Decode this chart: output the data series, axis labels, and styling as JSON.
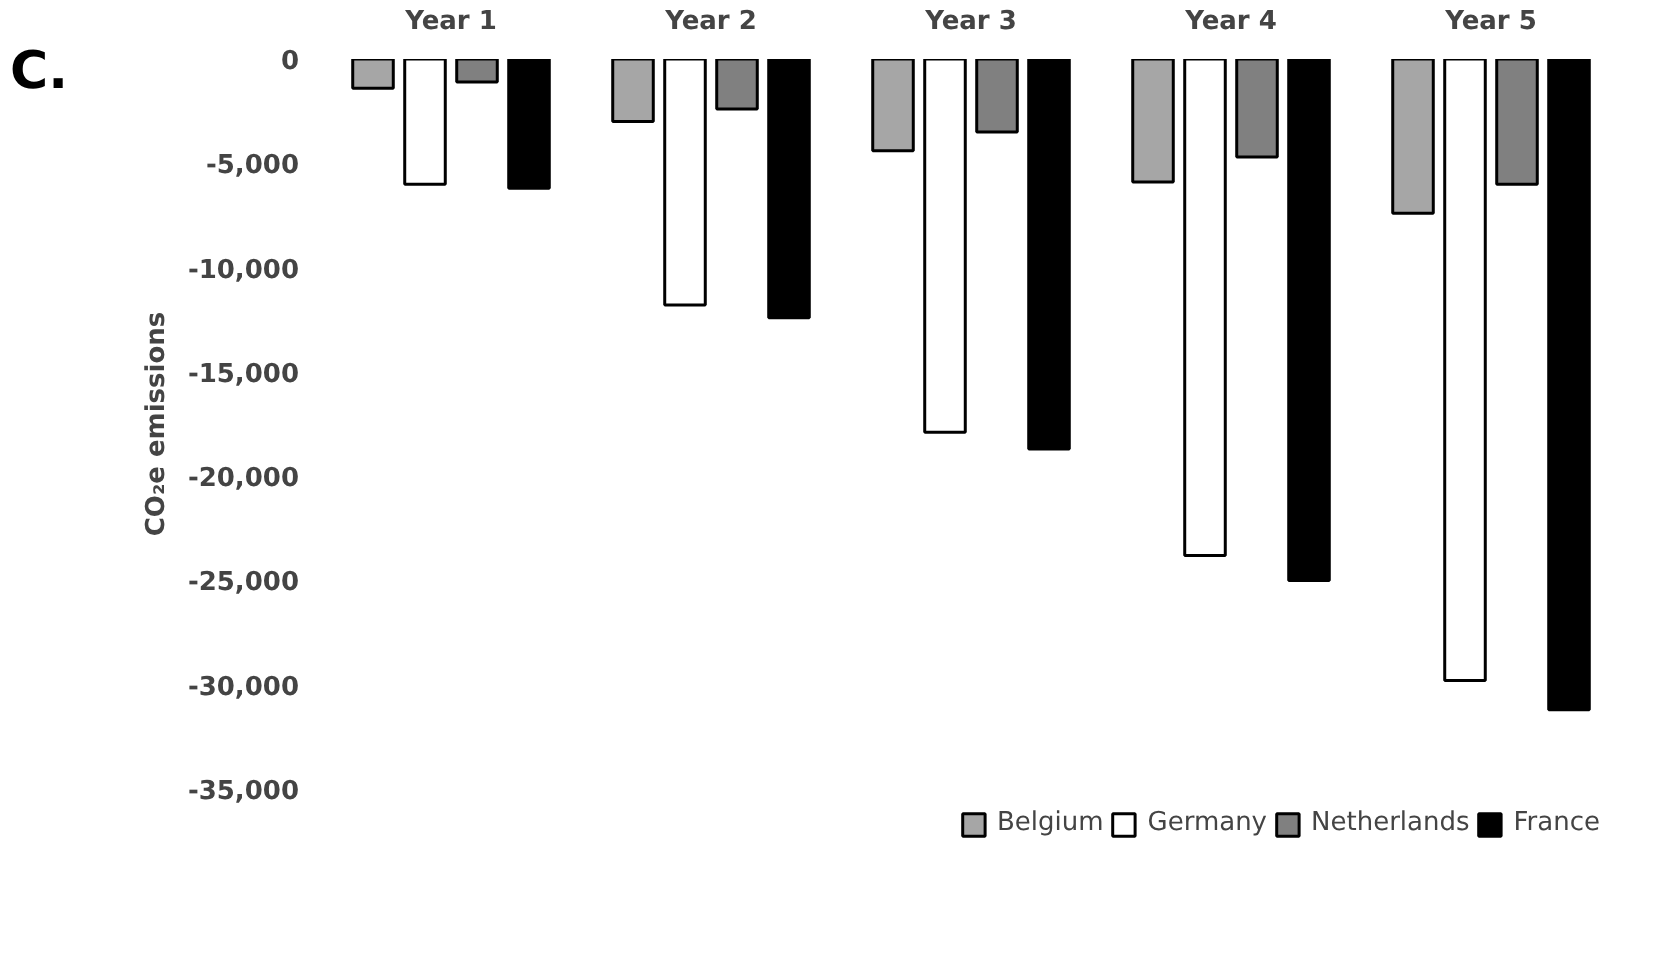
{
  "chart_data": {
    "type": "bar",
    "ylabel": "CO₂e emissions",
    "annotations": [
      "C."
    ],
    "categories": [
      "Year 1",
      "Year 2",
      "Year 3",
      "Year 4",
      "Year 5"
    ],
    "series": [
      {
        "name": "Belgium",
        "color": "#a6a6a6",
        "values": [
          -1400,
          -3000,
          -4400,
          -5900,
          -7400
        ]
      },
      {
        "name": "Germany",
        "color": "#ffffff",
        "values": [
          -6000,
          -11800,
          -17900,
          -23800,
          -29800
        ]
      },
      {
        "name": "Netherlands",
        "color": "#808080",
        "values": [
          -1100,
          -2400,
          -3500,
          -4700,
          -6000
        ]
      },
      {
        "name": "France",
        "color": "#000000",
        "values": [
          -6200,
          -12400,
          -18700,
          -25000,
          -31200
        ]
      }
    ],
    "ylim": [
      -35000,
      0
    ],
    "yticks": [
      {
        "value": 0,
        "label": "0"
      },
      {
        "value": -5000,
        "label": "-5,000"
      },
      {
        "value": -10000,
        "label": "-10,000"
      },
      {
        "value": -15000,
        "label": "-15,000"
      },
      {
        "value": -20000,
        "label": "-20,000"
      },
      {
        "value": -25000,
        "label": "-25,000"
      },
      {
        "value": -30000,
        "label": "-30,000"
      },
      {
        "value": -35000,
        "label": "-35,000"
      }
    ],
    "grid": false,
    "legend": "bottom"
  }
}
